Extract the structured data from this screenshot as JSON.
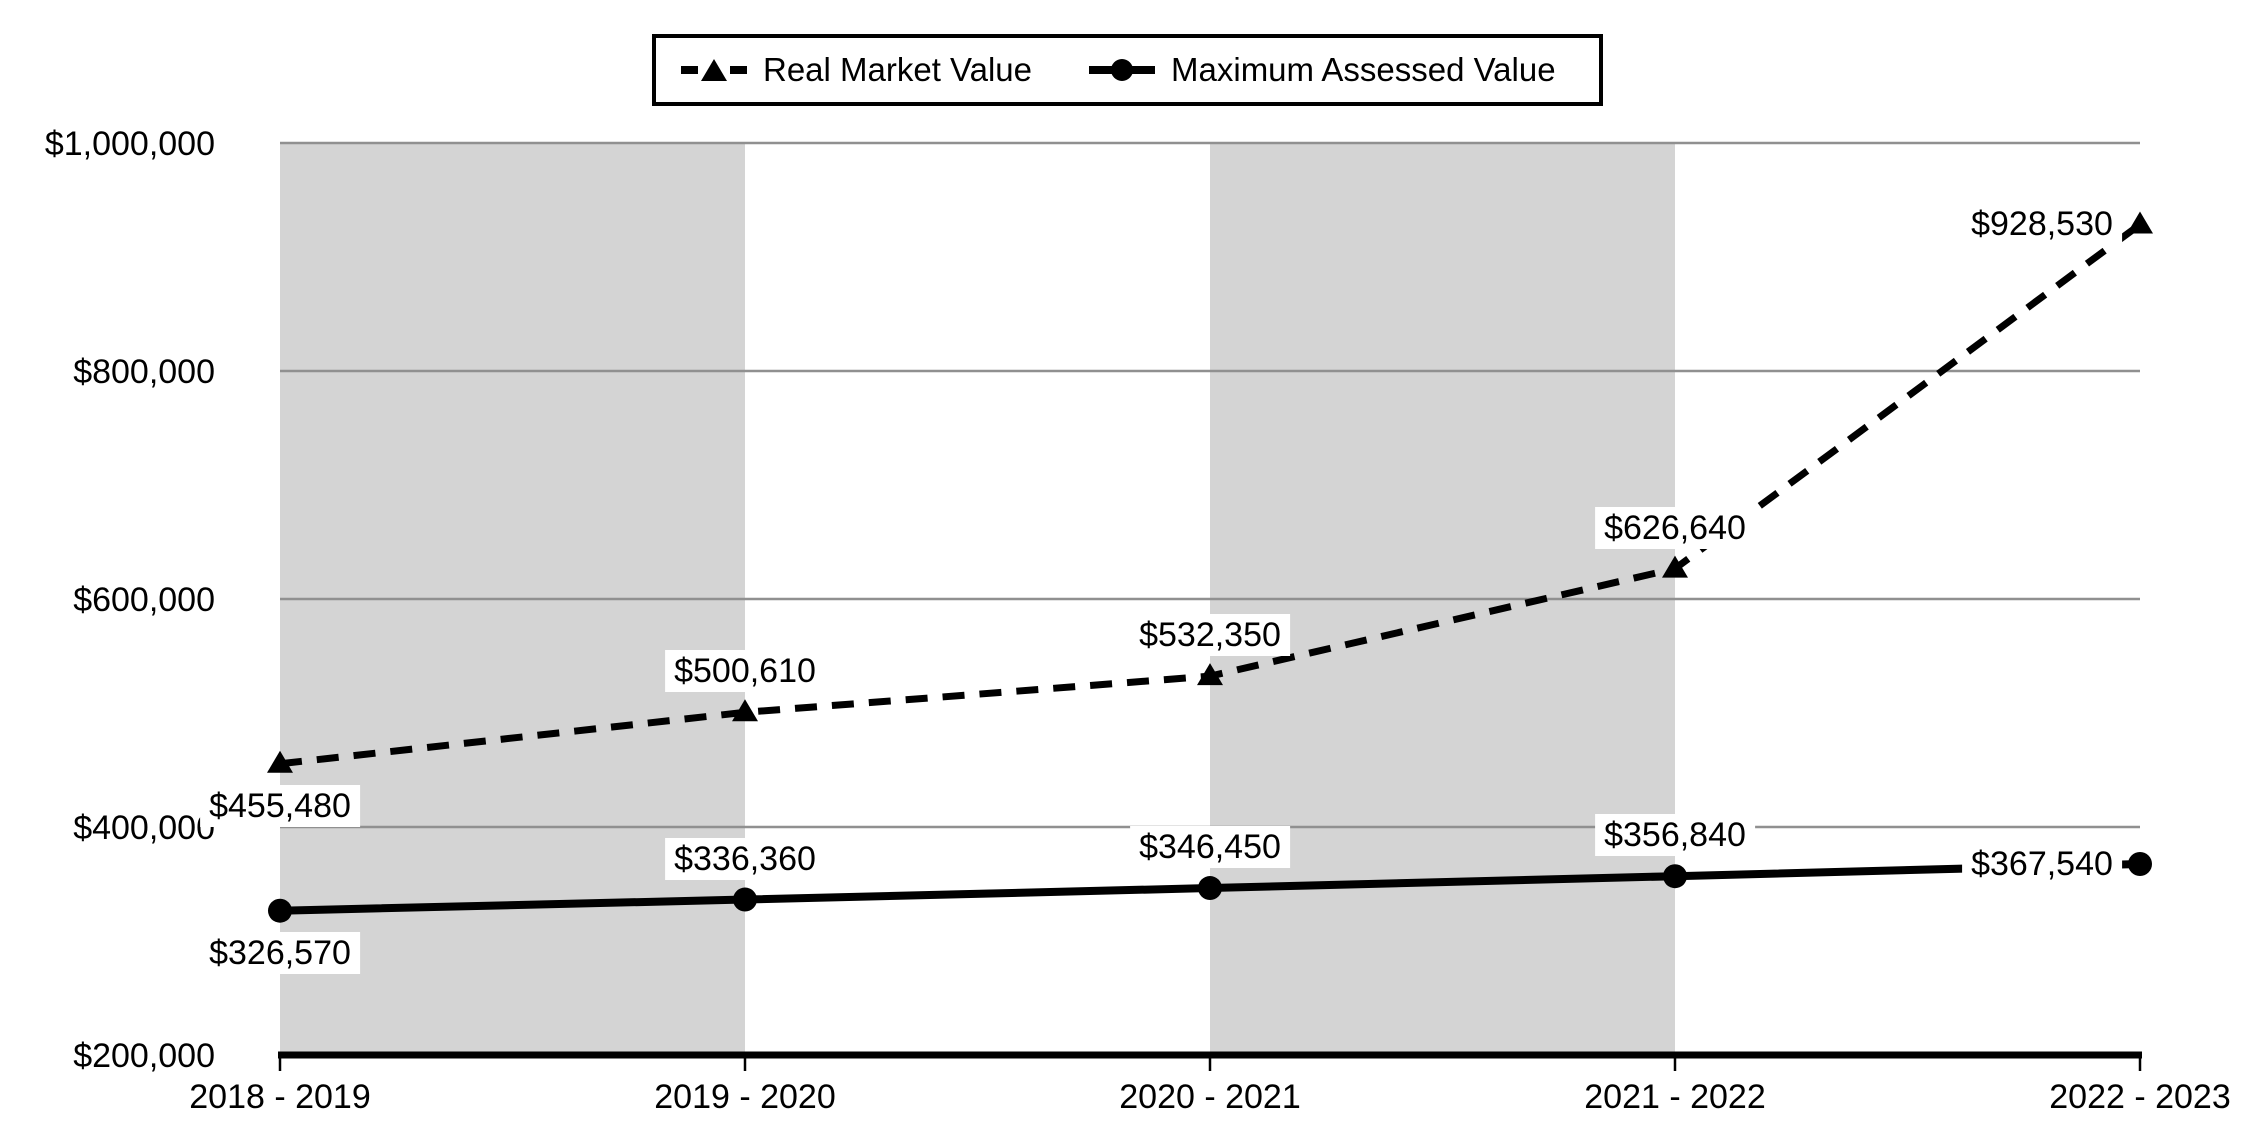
{
  "legend": {
    "items": [
      {
        "label": "Real Market Value"
      },
      {
        "label": "Maximum Assessed Value"
      }
    ]
  },
  "chart_data": {
    "type": "line",
    "title": "",
    "xlabel": "",
    "ylabel": "",
    "categories": [
      "2018 - 2019",
      "2019 - 2020",
      "2020 - 2021",
      "2021 - 2022",
      "2022 - 2023"
    ],
    "series": [
      {
        "name": "Real Market Value",
        "values": [
          455480,
          500610,
          532350,
          626640,
          928530
        ],
        "labels": [
          "$455,480",
          "$500,610",
          "$532,350",
          "$626,640",
          "$928,530"
        ],
        "label_placements": [
          "below",
          "above",
          "above",
          "above",
          "left"
        ],
        "line_style": "dashed",
        "marker": "triangle",
        "color": "#000000"
      },
      {
        "name": "Maximum Assessed Value",
        "values": [
          326570,
          336360,
          346450,
          356840,
          367540
        ],
        "labels": [
          "$326,570",
          "$336,360",
          "$346,450",
          "$356,840",
          "$367,540"
        ],
        "label_placements": [
          "below",
          "above",
          "above",
          "above",
          "left"
        ],
        "line_style": "solid",
        "marker": "circle",
        "color": "#000000"
      }
    ],
    "yticks": [
      {
        "value": 200000,
        "label": "$200,000"
      },
      {
        "value": 400000,
        "label": "$400,000"
      },
      {
        "value": 600000,
        "label": "$600,000"
      },
      {
        "value": 800000,
        "label": "$800,000"
      },
      {
        "value": 1000000,
        "label": "$1,000,000"
      }
    ],
    "ylim": [
      200000,
      1000000
    ],
    "grid": true,
    "legend_position": "top",
    "shaded_bands": [
      [
        0,
        1
      ],
      [
        2,
        3
      ]
    ],
    "band_color": "#d4d4d4",
    "gridline_color": "#909090",
    "axis_color": "#000000",
    "text_color": "#000000"
  }
}
